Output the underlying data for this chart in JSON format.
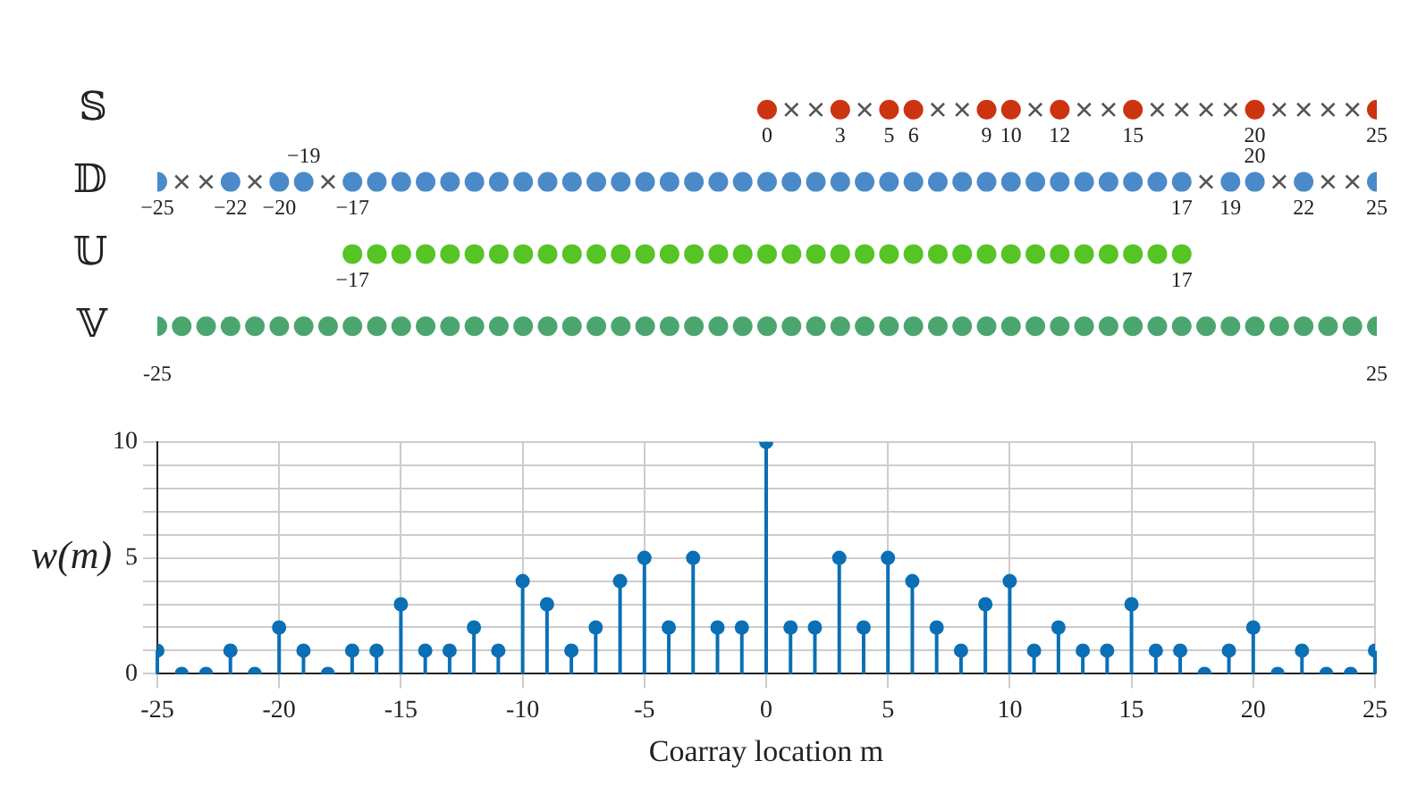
{
  "chart_data": [
    {
      "type": "scatter",
      "orientation": "horizontal",
      "categories": [
        "𝕊",
        "𝔻",
        "𝕌",
        "𝕍"
      ],
      "xlim": [
        -25,
        25
      ],
      "xticks": [
        -25,
        25
      ],
      "series": [
        {
          "color": "#cc3311",
          "marker": "circle",
          "x": [
            "𝕊",
            "𝕊",
            "𝕊",
            "𝕊",
            "𝕊",
            "𝕊",
            "𝕊",
            "𝕊",
            "𝕊",
            "𝕊"
          ],
          "values": [
            0,
            3,
            5,
            6,
            9,
            10,
            12,
            15,
            20,
            25
          ]
        },
        {
          "color": "#555555",
          "marker": "cross",
          "x": [
            "𝕊",
            "𝕊",
            "𝕊",
            "𝕊",
            "𝕊",
            "𝕊",
            "𝕊",
            "𝕊",
            "𝕊",
            "𝕊",
            "𝕊",
            "𝕊",
            "𝕊",
            "𝕊",
            "𝕊",
            "𝕊"
          ],
          "values": [
            1,
            2,
            4,
            7,
            8,
            11,
            13,
            14,
            16,
            17,
            18,
            19,
            21,
            22,
            23,
            24
          ]
        },
        {
          "color": "#4a8ac9",
          "marker": "circle",
          "x": [
            "𝔻",
            "𝔻",
            "𝔻",
            "𝔻",
            "𝔻",
            "𝔻",
            "𝔻",
            "𝔻",
            "𝔻",
            "𝔻",
            "𝔻",
            "𝔻",
            "𝔻",
            "𝔻",
            "𝔻",
            "𝔻",
            "𝔻",
            "𝔻",
            "𝔻",
            "𝔻",
            "𝔻",
            "𝔻",
            "𝔻",
            "𝔻",
            "𝔻",
            "𝔻",
            "𝔻",
            "𝔻",
            "𝔻",
            "𝔻",
            "𝔻",
            "𝔻",
            "𝔻",
            "𝔻",
            "𝔻",
            "𝔻",
            "𝔻",
            "𝔻",
            "𝔻",
            "𝔻",
            "𝔻",
            "𝔻",
            "𝔻"
          ],
          "values": [
            -25,
            -22,
            -20,
            -19,
            -17,
            -16,
            -15,
            -14,
            -13,
            -12,
            -11,
            -10,
            -9,
            -8,
            -7,
            -6,
            -5,
            -4,
            -3,
            -2,
            -1,
            0,
            1,
            2,
            3,
            4,
            5,
            6,
            7,
            8,
            9,
            10,
            11,
            12,
            13,
            14,
            15,
            16,
            17,
            19,
            20,
            22,
            25
          ]
        },
        {
          "color": "#555555",
          "marker": "cross",
          "x": [
            "𝔻",
            "𝔻",
            "𝔻",
            "𝔻",
            "𝔻",
            "𝔻",
            "𝔻",
            "𝔻"
          ],
          "values": [
            -24,
            -23,
            -21,
            -18,
            18,
            21,
            23,
            24
          ]
        },
        {
          "color": "#55c424",
          "marker": "circle",
          "x": [
            "𝕌",
            "𝕌",
            "𝕌",
            "𝕌",
            "𝕌",
            "𝕌",
            "𝕌",
            "𝕌",
            "𝕌",
            "𝕌",
            "𝕌",
            "𝕌",
            "𝕌",
            "𝕌",
            "𝕌",
            "𝕌",
            "𝕌",
            "𝕌",
            "𝕌",
            "𝕌",
            "𝕌",
            "𝕌",
            "𝕌",
            "𝕌",
            "𝕌",
            "𝕌",
            "𝕌",
            "𝕌",
            "𝕌",
            "𝕌",
            "𝕌",
            "𝕌",
            "𝕌",
            "𝕌",
            "𝕌"
          ],
          "values": [
            -17,
            -16,
            -15,
            -14,
            -13,
            -12,
            -11,
            -10,
            -9,
            -8,
            -7,
            -6,
            -5,
            -4,
            -3,
            -2,
            -1,
            0,
            1,
            2,
            3,
            4,
            5,
            6,
            7,
            8,
            9,
            10,
            11,
            12,
            13,
            14,
            15,
            16,
            17
          ]
        },
        {
          "color": "#4aa66e",
          "marker": "circle",
          "x": [
            "𝕍",
            "𝕍",
            "𝕍",
            "𝕍",
            "𝕍",
            "𝕍",
            "𝕍",
            "𝕍",
            "𝕍",
            "𝕍",
            "𝕍",
            "𝕍",
            "𝕍",
            "𝕍",
            "𝕍",
            "𝕍",
            "𝕍",
            "𝕍",
            "𝕍",
            "𝕍",
            "𝕍",
            "𝕍",
            "𝕍",
            "𝕍",
            "𝕍",
            "𝕍",
            "𝕍",
            "𝕍",
            "𝕍",
            "𝕍",
            "𝕍",
            "𝕍",
            "𝕍",
            "𝕍",
            "𝕍",
            "𝕍",
            "𝕍",
            "𝕍",
            "𝕍",
            "𝕍",
            "𝕍",
            "𝕍",
            "𝕍",
            "𝕍",
            "𝕍",
            "𝕍",
            "𝕍",
            "𝕍",
            "𝕍",
            "𝕍",
            "𝕍"
          ],
          "values": [
            -25,
            -24,
            -23,
            -22,
            -21,
            -20,
            -19,
            -18,
            -17,
            -16,
            -15,
            -14,
            -13,
            -12,
            -11,
            -10,
            -9,
            -8,
            -7,
            -6,
            -5,
            -4,
            -3,
            -2,
            -1,
            0,
            1,
            2,
            3,
            4,
            5,
            6,
            7,
            8,
            9,
            10,
            11,
            12,
            13,
            14,
            15,
            16,
            17,
            18,
            19,
            20,
            21,
            22,
            23,
            24,
            25
          ]
        }
      ],
      "annotations": [
        {
          "text": "0",
          "x": 0,
          "y": "𝕊"
        },
        {
          "text": "3",
          "x": 3,
          "y": "𝕊"
        },
        {
          "text": "5",
          "x": 5,
          "y": "𝕊"
        },
        {
          "text": "6",
          "x": 6,
          "y": "𝕊"
        },
        {
          "text": "9",
          "x": 9,
          "y": "𝕊"
        },
        {
          "text": "10",
          "x": 10,
          "y": "𝕊"
        },
        {
          "text": "12",
          "x": 12,
          "y": "𝕊"
        },
        {
          "text": "15",
          "x": 15,
          "y": "𝕊"
        },
        {
          "text": "20",
          "x": 20,
          "y": "𝕊"
        },
        {
          "text": "25",
          "x": 25,
          "y": "𝕊"
        },
        {
          "text": "−25",
          "x": -25,
          "y": "𝔻"
        },
        {
          "text": "−22",
          "x": -22,
          "y": "𝔻"
        },
        {
          "text": "−20",
          "x": -20,
          "y": "𝔻"
        },
        {
          "text": "−19",
          "x": -19,
          "y": "𝔻"
        },
        {
          "text": "−17",
          "x": -17,
          "y": "𝔻"
        },
        {
          "text": "17",
          "x": 17,
          "y": "𝔻"
        },
        {
          "text": "19",
          "x": 19,
          "y": "𝔻"
        },
        {
          "text": "20",
          "x": 20,
          "y": "𝔻"
        },
        {
          "text": "22",
          "x": 22,
          "y": "𝔻"
        },
        {
          "text": "25",
          "x": 25,
          "y": "𝔻"
        },
        {
          "text": "−17",
          "x": -17,
          "y": "𝕌"
        },
        {
          "text": "17",
          "x": 17,
          "y": "𝕌"
        }
      ]
    },
    {
      "type": "lollipop",
      "xlabel": "Coarray location m",
      "ylabel": "w(m)",
      "grid": true,
      "marker": "circle",
      "color": "#0a6fb5",
      "xlim": [
        -25,
        25
      ],
      "xticks": [
        -25,
        -20,
        -15,
        -10,
        -5,
        0,
        5,
        10,
        15,
        20,
        25
      ],
      "ylim": [
        0,
        10
      ],
      "yticks": [
        0,
        {
          "value": 1,
          "label": null
        },
        {
          "value": 2,
          "label": null
        },
        {
          "value": 3,
          "label": null
        },
        {
          "value": 4,
          "label": null
        },
        5,
        {
          "value": 6,
          "label": null
        },
        {
          "value": 7,
          "label": null
        },
        {
          "value": 8,
          "label": null
        },
        {
          "value": 9,
          "label": null
        },
        10
      ],
      "x": [
        -25,
        -24,
        -23,
        -22,
        -21,
        -20,
        -19,
        -18,
        -17,
        -16,
        -15,
        -14,
        -13,
        -12,
        -11,
        -10,
        -9,
        -8,
        -7,
        -6,
        -5,
        -4,
        -3,
        -2,
        -1,
        0,
        1,
        2,
        3,
        4,
        5,
        6,
        7,
        8,
        9,
        10,
        11,
        12,
        13,
        14,
        15,
        16,
        17,
        18,
        19,
        20,
        21,
        22,
        23,
        24,
        25
      ],
      "values": [
        1,
        0,
        0,
        1,
        0,
        2,
        1,
        0,
        1,
        1,
        3,
        1,
        1,
        2,
        1,
        4,
        3,
        1,
        2,
        4,
        5,
        2,
        5,
        2,
        2,
        10,
        2,
        2,
        5,
        2,
        5,
        4,
        2,
        1,
        3,
        4,
        1,
        2,
        1,
        1,
        3,
        1,
        1,
        0,
        1,
        2,
        0,
        1,
        0,
        0,
        1
      ]
    }
  ]
}
